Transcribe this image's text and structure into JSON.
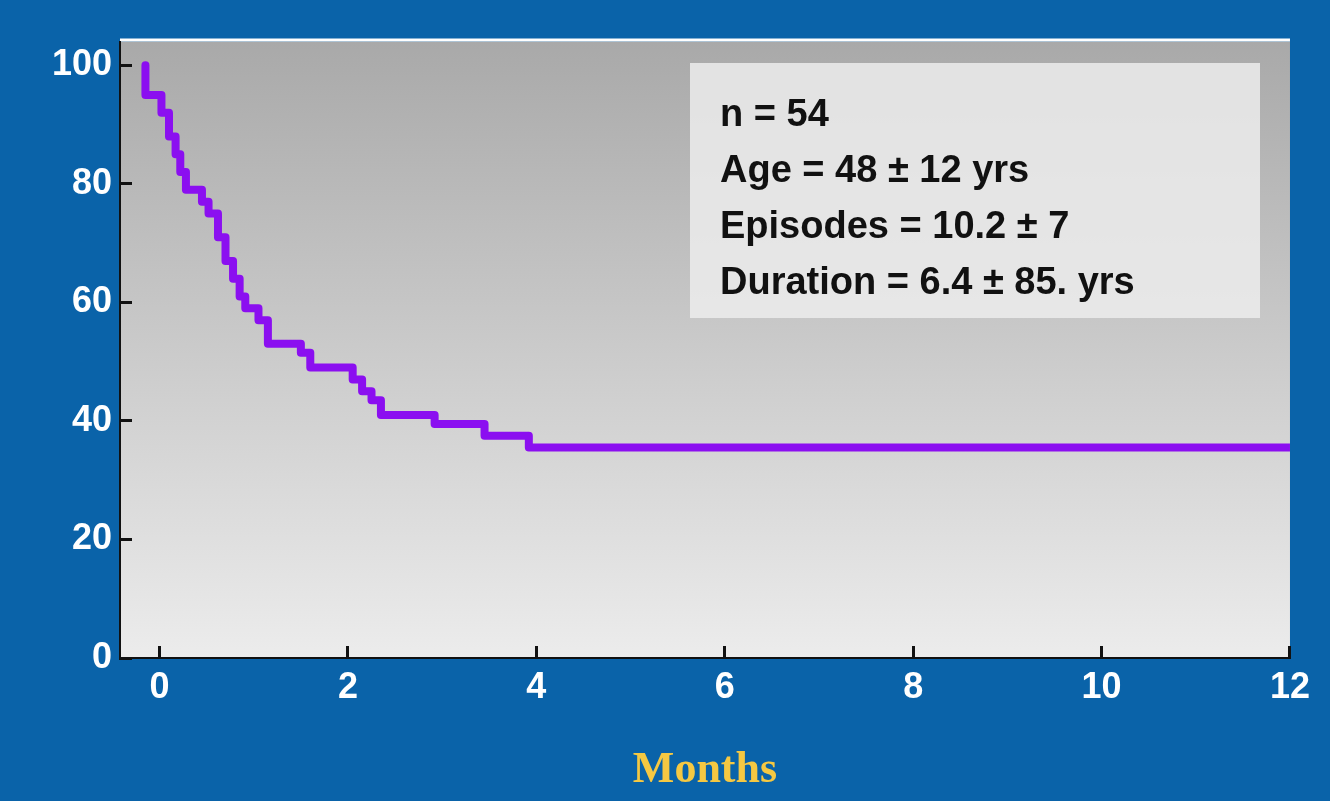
{
  "chart_data": {
    "type": "step",
    "xlabel": "Months",
    "annotations": [
      "n = 54",
      "Age = 48 ± 12 yrs",
      "Episodes = 10.2 ± 7",
      "Duration = 6.4 ± 85. yrs"
    ],
    "x": [
      -0.15,
      0.02,
      0.1,
      0.17,
      0.22,
      0.28,
      0.45,
      0.52,
      0.62,
      0.7,
      0.78,
      0.85,
      0.91,
      1.05,
      1.15,
      1.5,
      1.6,
      2.05,
      2.15,
      2.25,
      2.35,
      2.92,
      3.45,
      3.92,
      6.52,
      12
    ],
    "series": [
      {
        "color": "#8b0ff0",
        "values": [
          100,
          95,
          92,
          88,
          85,
          82,
          79,
          77,
          75,
          71,
          67,
          64,
          61,
          59,
          57,
          53,
          51.5,
          49,
          47,
          45,
          43.5,
          41,
          39.5,
          37.5,
          35.5,
          35.5
        ]
      }
    ],
    "xlim": [
      -0.42,
      12
    ],
    "xticks": [
      0,
      2,
      4,
      6,
      8,
      10,
      12
    ],
    "ylim": [
      0,
      104
    ],
    "yticks": [
      0,
      20,
      40,
      60,
      80,
      100
    ],
    "grid": false,
    "legend": false,
    "marker": "none",
    "line_style": "solid"
  }
}
